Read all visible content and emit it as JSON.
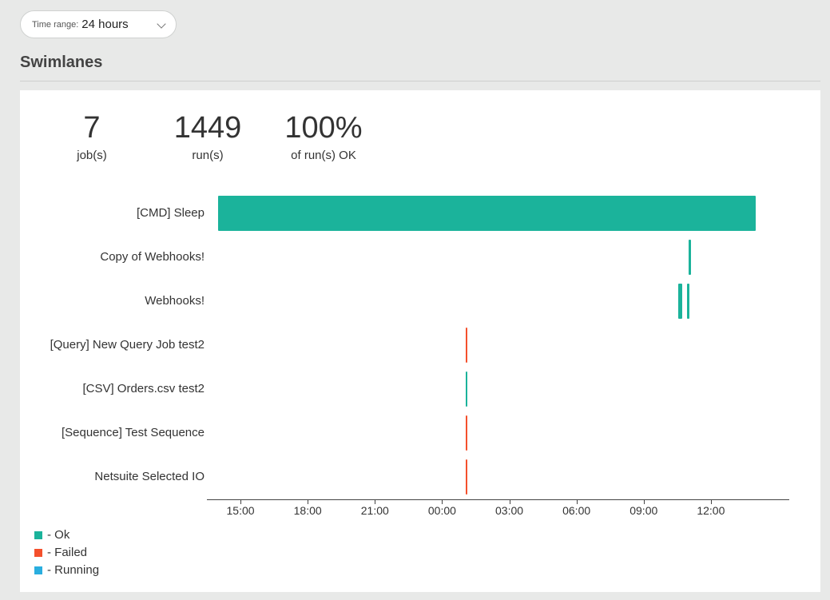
{
  "time_range": {
    "label": "Time range:",
    "value": "24 hours"
  },
  "section_title": "Swimlanes",
  "stats": [
    {
      "value": "7",
      "label": "job(s)"
    },
    {
      "value": "1449",
      "label": "run(s)"
    },
    {
      "value": "100%",
      "label": "of run(s) OK"
    }
  ],
  "colors": {
    "ok": "#1bb39b",
    "failed": "#f4502c",
    "running": "#2aaedf"
  },
  "lanes": [
    {
      "label": "[CMD] Sleep"
    },
    {
      "label": "Copy of Webhooks!"
    },
    {
      "label": "Webhooks!"
    },
    {
      "label": "[Query] New Query Job test2"
    },
    {
      "label": "[CSV] Orders.csv test2"
    },
    {
      "label": "[Sequence] Test Sequence"
    },
    {
      "label": "Netsuite Selected IO"
    }
  ],
  "chart_data": {
    "type": "timeline",
    "x_ticks": [
      "15:00",
      "18:00",
      "21:00",
      "00:00",
      "03:00",
      "06:00",
      "09:00",
      "12:00"
    ],
    "x_range_hours": [
      -1.5,
      24.5
    ],
    "bars": [
      {
        "lane": 0,
        "start": -1.0,
        "end": 23.0,
        "status": "ok"
      },
      {
        "lane": 1,
        "start": 20.0,
        "end": 20.1,
        "status": "ok"
      },
      {
        "lane": 2,
        "start": 19.55,
        "end": 19.72,
        "status": "ok"
      },
      {
        "lane": 2,
        "start": 19.95,
        "end": 20.05,
        "status": "ok"
      },
      {
        "lane": 3,
        "start": 10.05,
        "end": 10.12,
        "status": "failed"
      },
      {
        "lane": 4,
        "start": 10.05,
        "end": 10.12,
        "status": "ok"
      },
      {
        "lane": 5,
        "start": 10.05,
        "end": 10.12,
        "status": "failed"
      },
      {
        "lane": 6,
        "start": 10.05,
        "end": 10.12,
        "status": "failed"
      }
    ]
  },
  "legend": [
    {
      "label": "- Ok",
      "status": "ok"
    },
    {
      "label": "- Failed",
      "status": "failed"
    },
    {
      "label": "- Running",
      "status": "running"
    }
  ]
}
